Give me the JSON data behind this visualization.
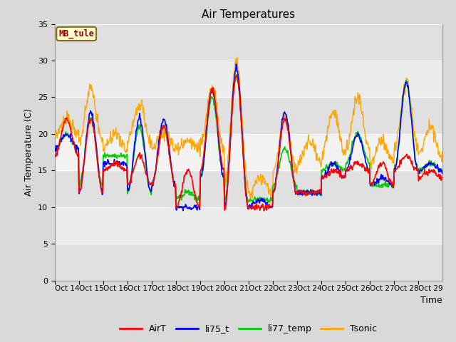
{
  "title": "Air Temperatures",
  "xlabel": "Time",
  "ylabel": "Air Temperature (C)",
  "ylim": [
    0,
    35
  ],
  "yticks": [
    0,
    5,
    10,
    15,
    20,
    25,
    30,
    35
  ],
  "site_label": "MB_tule",
  "bg_color": "#e8e8e8",
  "band_color": "#f5f5f5",
  "line_colors": {
    "AirT": "#ff0000",
    "li75_t": "#0000ff",
    "li77_temp": "#00cc00",
    "Tsonic": "#ffa500"
  },
  "legend_labels": [
    "AirT",
    "li75_t",
    "li77_temp",
    "Tsonic"
  ],
  "x_tick_labels": [
    "Oct 14",
    "Oct 15",
    "Oct 16",
    "Oct 17",
    "Oct 18",
    "Oct 19",
    "Oct 20",
    "Oct 21",
    "Oct 22",
    "Oct 23",
    "Oct 24",
    "Oct 25",
    "Oct 26",
    "Oct 27",
    "Oct 28",
    "Oct 29"
  ],
  "n_days": 16,
  "day_max_AirT": [
    22,
    22,
    16,
    17,
    21,
    15,
    26,
    28,
    10,
    22,
    12,
    15,
    16,
    16,
    17,
    15
  ],
  "day_min_AirT": [
    17,
    12,
    15,
    13,
    13,
    10,
    15,
    10,
    10,
    12,
    12,
    14,
    15,
    13,
    15,
    14
  ],
  "day_max_li75": [
    20,
    23,
    16,
    22,
    22,
    10,
    26,
    29,
    11,
    23,
    12,
    16,
    20,
    14,
    27,
    16
  ],
  "day_min_li75": [
    18,
    12,
    16,
    12,
    13,
    10,
    14,
    10,
    10,
    12,
    12,
    14,
    15,
    13,
    15,
    15
  ],
  "day_max_li77": [
    20,
    22,
    17,
    21,
    21,
    12,
    25,
    28,
    11,
    18,
    12,
    16,
    20,
    13,
    27,
    16
  ],
  "day_min_li77": [
    18,
    13,
    17,
    12,
    13,
    11,
    14,
    11,
    11,
    13,
    12,
    15,
    16,
    13,
    15,
    15
  ],
  "day_max_Tsonic": [
    22,
    26,
    20,
    24,
    20,
    19,
    26,
    30,
    14,
    22,
    19,
    23,
    25,
    19,
    27,
    21
  ],
  "day_min_Tsonic": [
    20,
    19,
    18,
    19,
    18,
    18,
    18,
    13,
    12,
    15,
    16,
    17,
    18,
    16,
    18,
    17
  ]
}
